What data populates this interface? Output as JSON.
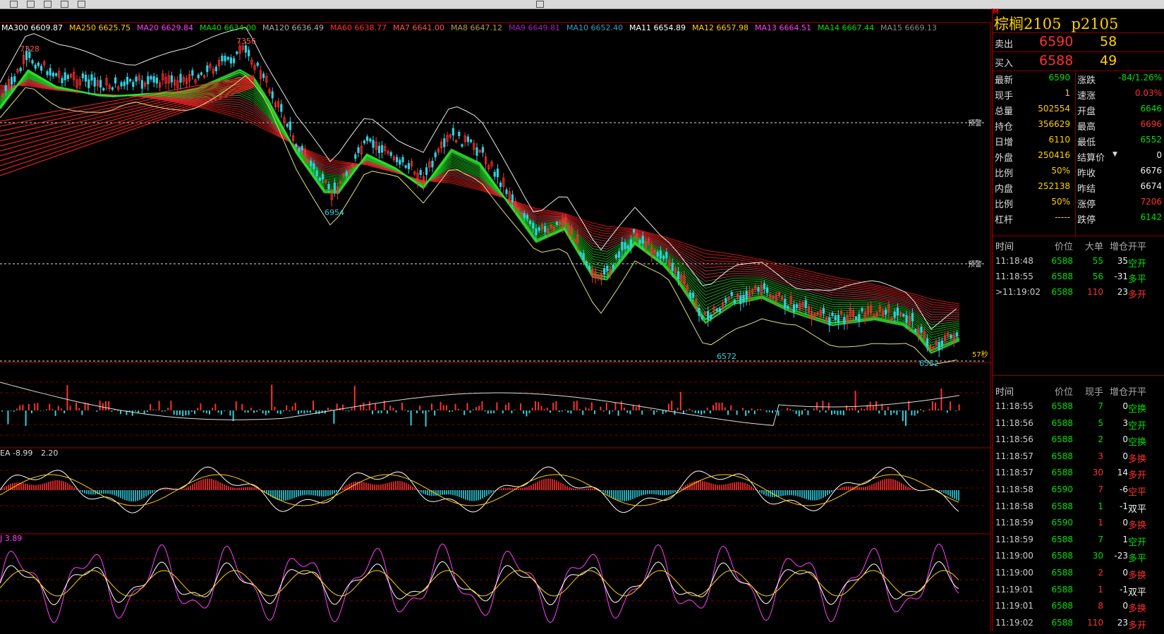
{
  "colors": {
    "up": "#ff3030",
    "down": "#00e000",
    "yellow": "#ffd000",
    "cyan": "#00c8d8",
    "magenta": "#ff40ff",
    "white": "#ffffff",
    "grid": "#a00000"
  },
  "ma_labels": [
    {
      "text": "MA300 6609.87",
      "color": "#ffffff"
    },
    {
      "text": "MA250 6625.75",
      "color": "#ffd000"
    },
    {
      "text": "MA20 6629.84",
      "color": "#ff40ff"
    },
    {
      "text": "MA40 6634.00",
      "color": "#00e000"
    },
    {
      "text": "MA120 6636.49",
      "color": "#aaaaaa"
    },
    {
      "text": "MA60 6638.77",
      "color": "#ff3030"
    },
    {
      "text": "MA7 6641.00",
      "color": "#ff5050"
    },
    {
      "text": "MA8 6647.12",
      "color": "#b0a040"
    },
    {
      "text": "MA9 6649.81",
      "color": "#a020c0"
    },
    {
      "text": "MA10 6652.40",
      "color": "#30a0c0"
    },
    {
      "text": "MA11 6654.89",
      "color": "#ffffff"
    },
    {
      "text": "MA12 6657.98",
      "color": "#ffd000"
    },
    {
      "text": "MA13 6664.51",
      "color": "#ff40ff"
    },
    {
      "text": "MA14 6667.44",
      "color": "#00e000"
    },
    {
      "text": "MA15 6669.13",
      "color": "#888888"
    }
  ],
  "price_annotations": {
    "p7328": "7328",
    "p7356": "7356",
    "p6954": "6954",
    "p6572": "6572",
    "p6552": "6552"
  },
  "alert_label": "预警",
  "countdown": "57秒",
  "macd_label": "EA -8.99",
  "macd_value": "2.20",
  "kdj_label": "J 3.89",
  "header": {
    "m_tag": "M",
    "name": "棕榈2105",
    "code": "p2105"
  },
  "ask": {
    "label": "卖出",
    "price": "6590",
    "volume": "58"
  },
  "bid": {
    "label": "买入",
    "price": "6588",
    "volume": "49"
  },
  "stats": [
    {
      "l1": "最新",
      "v1": "6590",
      "c1": "green",
      "l2": "涨跌",
      "v2": "-84/1.26%",
      "c2": "green"
    },
    {
      "l1": "现手",
      "v1": "1",
      "c1": "yellow",
      "l2": "速涨",
      "v2": "0.03%",
      "c2": "red"
    },
    {
      "l1": "总量",
      "v1": "502554",
      "c1": "yellow",
      "l2": "开盘",
      "v2": "6646",
      "c2": "green"
    },
    {
      "l1": "持仓",
      "v1": "356629",
      "c1": "yellow",
      "l2": "最高",
      "v2": "6696",
      "c2": "red"
    },
    {
      "l1": "日增",
      "v1": "6110",
      "c1": "yellow",
      "l2": "最低",
      "v2": "6552",
      "c2": "green"
    },
    {
      "l1": "外盘",
      "v1": "250416",
      "c1": "yellow",
      "l2": "结算价",
      "v2": "0",
      "c2": "white"
    },
    {
      "l1": "比例",
      "v1": "50%",
      "c1": "yellow",
      "l2": "昨收",
      "v2": "6676",
      "c2": "white"
    },
    {
      "l1": "内盘",
      "v1": "252138",
      "c1": "yellow",
      "l2": "昨结",
      "v2": "6674",
      "c2": "white"
    },
    {
      "l1": "比例",
      "v1": "50%",
      "c1": "yellow",
      "l2": "涨停",
      "v2": "7206",
      "c2": "red"
    },
    {
      "l1": "杠杆",
      "v1": "-----",
      "c1": "yellow",
      "l2": "跌停",
      "v2": "6142",
      "c2": "green"
    }
  ],
  "big_trades_header": {
    "time": "时间",
    "price": "价位",
    "big": "大单",
    "chg": "增仓",
    "type": "开平"
  },
  "big_trades": [
    {
      "time": "11:18:48",
      "price": "6588",
      "big": "55",
      "chg": "35",
      "type": "空开",
      "bc": "green",
      "tc": "green"
    },
    {
      "time": "11:18:55",
      "price": "6588",
      "big": "56",
      "chg": "-31",
      "type": "多平",
      "bc": "green",
      "tc": "green"
    },
    {
      "time": ">11:19:02",
      "price": "6588",
      "big": "110",
      "chg": "23",
      "type": "多开",
      "bc": "red",
      "tc": "red"
    }
  ],
  "ticks_header": {
    "time": "时间",
    "price": "价位",
    "vol": "现手",
    "chg": "增仓",
    "type": "开平"
  },
  "ticks": [
    {
      "time": "11:18:55",
      "price": "6588",
      "vol": "7",
      "chg": "0",
      "type": "空换",
      "vc": "green",
      "tc": "green"
    },
    {
      "time": "11:18:56",
      "price": "6588",
      "vol": "5",
      "chg": "3",
      "type": "空开",
      "vc": "green",
      "tc": "green"
    },
    {
      "time": "11:18:56",
      "price": "6588",
      "vol": "2",
      "chg": "0",
      "type": "空换",
      "vc": "green",
      "tc": "green"
    },
    {
      "time": "11:18:57",
      "price": "6588",
      "vol": "3",
      "chg": "0",
      "type": "多换",
      "vc": "red",
      "tc": "red"
    },
    {
      "time": "11:18:57",
      "price": "6588",
      "vol": "30",
      "chg": "14",
      "type": "多开",
      "vc": "red",
      "tc": "red"
    },
    {
      "time": "11:18:58",
      "price": "6590",
      "vol": "7",
      "chg": "-6",
      "type": "空平",
      "vc": "red",
      "tc": "red"
    },
    {
      "time": "11:18:58",
      "price": "6588",
      "vol": "1",
      "chg": "-1",
      "type": "双平",
      "vc": "green",
      "tc": "white"
    },
    {
      "time": "11:18:59",
      "price": "6590",
      "vol": "1",
      "chg": "0",
      "type": "多换",
      "vc": "red",
      "tc": "red"
    },
    {
      "time": "11:18:59",
      "price": "6588",
      "vol": "7",
      "chg": "1",
      "type": "空开",
      "vc": "green",
      "tc": "green"
    },
    {
      "time": "11:19:00",
      "price": "6588",
      "vol": "30",
      "chg": "-23",
      "type": "多平",
      "vc": "green",
      "tc": "green"
    },
    {
      "time": "11:19:00",
      "price": "6588",
      "vol": "2",
      "chg": "0",
      "type": "多换",
      "vc": "red",
      "tc": "red"
    },
    {
      "time": "11:19:01",
      "price": "6588",
      "vol": "1",
      "chg": "-1",
      "type": "双平",
      "vc": "red",
      "tc": "white"
    },
    {
      "time": "11:19:01",
      "price": "6588",
      "vol": "8",
      "chg": "0",
      "type": "多换",
      "vc": "red",
      "tc": "red"
    },
    {
      "time": "11:19:02",
      "price": "6588",
      "vol": "110",
      "chg": "23",
      "type": "多开",
      "vc": "red",
      "tc": "red"
    }
  ]
}
